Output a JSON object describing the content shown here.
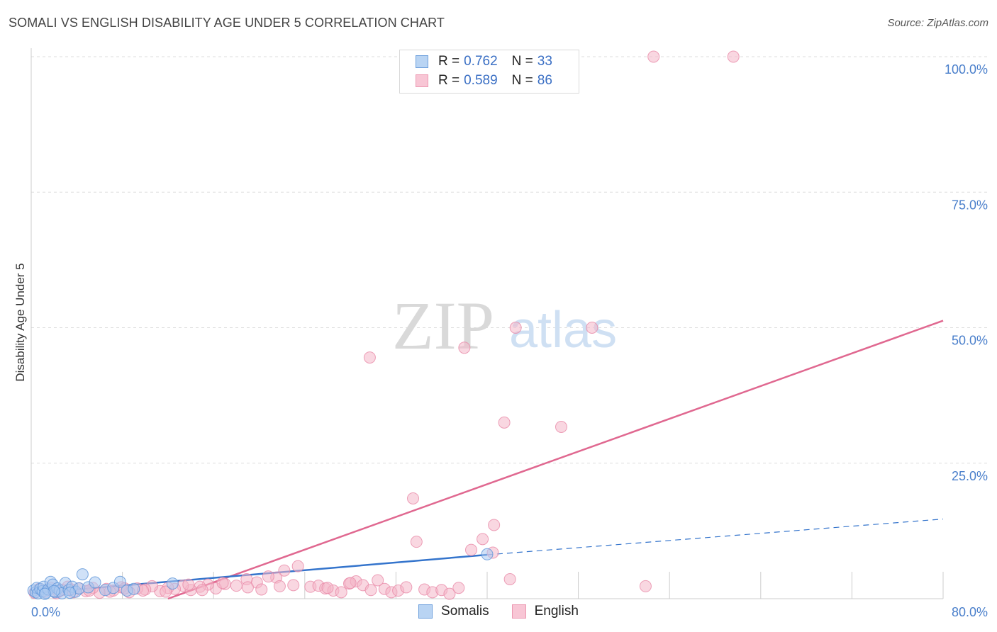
{
  "title": "SOMALI VS ENGLISH DISABILITY AGE UNDER 5 CORRELATION CHART",
  "source": "Source: ZipAtlas.com",
  "watermark": {
    "part1": "ZIP",
    "part2": "atlas"
  },
  "legend": {
    "r_label": "R = ",
    "n_label": "N = ",
    "series": [
      {
        "r": "0.762",
        "n": "33"
      },
      {
        "r": "0.589",
        "n": "86"
      }
    ]
  },
  "colors": {
    "somali_fill": "#a9c9f0",
    "somali_stroke": "#5b93d8",
    "somali_line": "#3474cc",
    "english_fill": "#f4b7c9",
    "english_stroke": "#e98aa7",
    "english_line": "#e06890",
    "grid": "#dddddd",
    "tick": "#4a7fcb"
  },
  "chart_data": {
    "type": "scatter",
    "title": "SOMALI VS ENGLISH DISABILITY AGE UNDER 5 CORRELATION CHART",
    "xlabel": "",
    "ylabel": "Disability Age Under 5",
    "xlim": [
      0,
      80
    ],
    "ylim": [
      0,
      100
    ],
    "x_tick_labels": [
      "0.0%",
      "80.0%"
    ],
    "y_ticks": [
      25,
      50,
      75,
      100
    ],
    "y_tick_labels": [
      "25.0%",
      "50.0%",
      "75.0%",
      "100.0%"
    ],
    "series": [
      {
        "name": "Somalis",
        "r": 0.762,
        "n": 33,
        "trend": {
          "x0": 0,
          "y0": 1.0,
          "x1": 40,
          "y1": 8.1,
          "dash_x1": 80,
          "dash_y1": 14.7
        },
        "points": [
          [
            0.2,
            1.5
          ],
          [
            0.4,
            1.2
          ],
          [
            0.5,
            2.0
          ],
          [
            0.6,
            1.0
          ],
          [
            0.8,
            1.8
          ],
          [
            1.0,
            1.4
          ],
          [
            1.1,
            2.2
          ],
          [
            1.3,
            1.1
          ],
          [
            1.5,
            1.7
          ],
          [
            1.7,
            3.1
          ],
          [
            1.9,
            2.6
          ],
          [
            2.1,
            1.2
          ],
          [
            2.3,
            1.9
          ],
          [
            2.5,
            1.5
          ],
          [
            2.7,
            1.0
          ],
          [
            3.0,
            2.9
          ],
          [
            3.3,
            1.6
          ],
          [
            3.6,
            2.2
          ],
          [
            3.9,
            1.3
          ],
          [
            4.2,
            1.9
          ],
          [
            4.5,
            4.5
          ],
          [
            5.0,
            2.1
          ],
          [
            5.6,
            3.0
          ],
          [
            6.5,
            1.6
          ],
          [
            7.2,
            2.0
          ],
          [
            7.8,
            3.1
          ],
          [
            8.4,
            1.5
          ],
          [
            9.0,
            1.8
          ],
          [
            12.4,
            2.8
          ],
          [
            40.0,
            8.2
          ],
          [
            3.4,
            1.1
          ],
          [
            2.0,
            1.4
          ],
          [
            1.2,
            0.9
          ]
        ]
      },
      {
        "name": "English",
        "r": 0.589,
        "n": 86,
        "trend": {
          "x0": 12,
          "y0": 0,
          "x1": 80,
          "y1": 51.3
        },
        "points": [
          [
            54.6,
            100
          ],
          [
            61.6,
            100
          ],
          [
            42.5,
            50
          ],
          [
            49.2,
            50
          ],
          [
            29.7,
            44.5
          ],
          [
            38.0,
            46.3
          ],
          [
            41.5,
            32.5
          ],
          [
            46.5,
            31.7
          ],
          [
            33.5,
            18.5
          ],
          [
            33.8,
            10.5
          ],
          [
            40.6,
            13.6
          ],
          [
            39.6,
            11.0
          ],
          [
            38.6,
            9.0
          ],
          [
            40.5,
            8.5
          ],
          [
            42.0,
            3.6
          ],
          [
            53.9,
            2.3
          ],
          [
            23.4,
            6.0
          ],
          [
            22.2,
            5.2
          ],
          [
            21.5,
            3.9
          ],
          [
            20.8,
            4.1
          ],
          [
            19.8,
            3.0
          ],
          [
            18.9,
            3.6
          ],
          [
            18.0,
            2.4
          ],
          [
            17.0,
            2.7
          ],
          [
            16.2,
            1.9
          ],
          [
            15.5,
            2.6
          ],
          [
            14.8,
            2.2
          ],
          [
            14.0,
            1.6
          ],
          [
            13.3,
            2.4
          ],
          [
            12.6,
            1.8
          ],
          [
            12.0,
            2.0
          ],
          [
            11.3,
            1.4
          ],
          [
            10.6,
            2.3
          ],
          [
            10.0,
            1.7
          ],
          [
            9.3,
            1.9
          ],
          [
            8.6,
            1.2
          ],
          [
            7.9,
            2.1
          ],
          [
            7.2,
            1.5
          ],
          [
            6.6,
            1.8
          ],
          [
            6.0,
            1.1
          ],
          [
            5.4,
            2.0
          ],
          [
            4.8,
            1.4
          ],
          [
            4.2,
            1.9
          ],
          [
            3.7,
            1.2
          ],
          [
            3.2,
            2.2
          ],
          [
            2.7,
            1.6
          ],
          [
            2.2,
            1.0
          ],
          [
            1.7,
            2.0
          ],
          [
            1.2,
            1.3
          ],
          [
            0.7,
            1.8
          ],
          [
            0.3,
            1.1
          ],
          [
            24.5,
            2.2
          ],
          [
            25.2,
            2.4
          ],
          [
            25.8,
            1.9
          ],
          [
            26.5,
            1.5
          ],
          [
            27.2,
            1.2
          ],
          [
            27.9,
            2.8
          ],
          [
            28.5,
            3.2
          ],
          [
            29.1,
            2.5
          ],
          [
            29.8,
            1.6
          ],
          [
            30.4,
            3.4
          ],
          [
            31.0,
            1.8
          ],
          [
            31.6,
            1.2
          ],
          [
            32.2,
            1.5
          ],
          [
            32.9,
            2.1
          ],
          [
            34.5,
            1.7
          ],
          [
            35.2,
            1.2
          ],
          [
            36.0,
            1.6
          ],
          [
            36.7,
            0.9
          ],
          [
            37.5,
            2.0
          ],
          [
            26.0,
            2.0
          ],
          [
            28.0,
            2.9
          ],
          [
            19.0,
            2.1
          ],
          [
            20.2,
            1.7
          ],
          [
            21.8,
            2.3
          ],
          [
            23.0,
            2.5
          ],
          [
            16.8,
            2.9
          ],
          [
            15.0,
            1.6
          ],
          [
            13.8,
            2.6
          ],
          [
            11.8,
            1.3
          ],
          [
            9.8,
            1.5
          ],
          [
            8.2,
            1.9
          ],
          [
            6.9,
            1.3
          ],
          [
            5.1,
            1.5
          ],
          [
            3.5,
            1.7
          ],
          [
            2.4,
            1.3
          ]
        ]
      }
    ]
  },
  "bottom_legend": [
    "Somalis",
    "English"
  ]
}
